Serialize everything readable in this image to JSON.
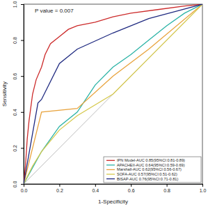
{
  "chart_data": {
    "type": "line",
    "annotation": "P value = 0.007",
    "x_label": "1-Specificity",
    "y_label": "Sensitivity",
    "xlim": [
      0,
      1
    ],
    "ylim": [
      0,
      1
    ],
    "xticks": [
      {
        "value": 0,
        "label": "0.0"
      },
      0.2,
      0.4,
      0.6,
      0.8,
      {
        "value": 1,
        "label": "1.0"
      }
    ],
    "yticks": [
      {
        "value": 0,
        "label": "0.0"
      },
      0.2,
      0.4,
      0.6,
      0.8,
      {
        "value": 1,
        "label": "1.0"
      }
    ],
    "legend": "bottom-right",
    "series": [
      {
        "name": "IPN Model-AUC 0.85(95%CI:0.81-0.89)",
        "color": "#cc2a2a",
        "x": [
          0,
          0.01,
          0.02,
          0.03,
          0.05,
          0.07,
          0.1,
          0.12,
          0.15,
          0.2,
          0.25,
          0.3,
          0.4,
          0.5,
          0.6,
          0.75,
          0.9,
          1
        ],
        "values": [
          0,
          0.1,
          0.25,
          0.35,
          0.5,
          0.58,
          0.65,
          0.72,
          0.78,
          0.82,
          0.86,
          0.88,
          0.9,
          0.93,
          0.95,
          0.97,
          0.99,
          1
        ]
      },
      {
        "name": "APACHEII-AUC 0.64(95%CI:0.59-0.69)",
        "color": "#2bb3a6",
        "x": [
          0,
          0.1,
          0.2,
          0.3,
          0.4,
          0.5,
          0.6,
          0.7,
          0.8,
          0.9,
          1
        ],
        "values": [
          0,
          0.18,
          0.32,
          0.4,
          0.55,
          0.65,
          0.72,
          0.8,
          0.88,
          0.95,
          1
        ]
      },
      {
        "name": "Marshall-AUC 0.62(95%CI:0.56-0.67)",
        "color": "#e8a33d",
        "x": [
          0,
          0.1,
          0.3,
          0.5,
          0.7,
          1
        ],
        "values": [
          0,
          0.4,
          0.42,
          0.6,
          0.75,
          1
        ]
      },
      {
        "name": "SOFA-AUC 0.57(95%CI:0.51-0.62)",
        "color": "#d6c94e",
        "x": [
          0,
          0.05,
          0.1,
          0.2,
          0.3,
          0.5,
          0.7,
          1
        ],
        "values": [
          0,
          0.1,
          0.18,
          0.3,
          0.38,
          0.5,
          0.7,
          1
        ]
      },
      {
        "name": "BISAP-AUC 0.76(95%CI:0.71-0.81)",
        "color": "#1f2a80",
        "x": [
          0,
          0.08,
          0.1,
          0.2,
          0.3,
          0.5,
          0.7,
          0.85,
          1
        ],
        "values": [
          0,
          0.45,
          0.47,
          0.67,
          0.75,
          0.84,
          0.92,
          0.96,
          1
        ]
      }
    ]
  }
}
